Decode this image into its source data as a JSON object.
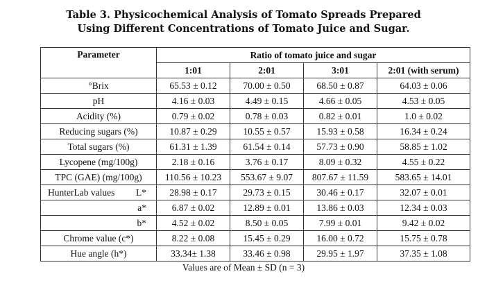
{
  "caption": {
    "line1": "Table 3. Physicochemical Analysis of Tomato Spreads Prepared",
    "line2": "Using Different Concentrations of Tomato Juice and Sugar."
  },
  "table": {
    "param_header": "Parameter",
    "group_header": "Ratio of tomato juice and sugar",
    "columns": [
      "1:01",
      "2:01",
      "3:01",
      "2:01 (with serum)"
    ],
    "rows": [
      {
        "label": "°Brix",
        "values": [
          "65.53 ± 0.12",
          "70.00 ± 0.50",
          "68.50 ± 0.87",
          "64.03 ± 0.06"
        ]
      },
      {
        "label": "pH",
        "values": [
          "4.16 ± 0.03",
          "4.49 ± 0.15",
          "4.66 ± 0.05",
          "4.53 ± 0.05"
        ]
      },
      {
        "label": "Acidity (%)",
        "values": [
          "0.79 ± 0.02",
          "0.78 ± 0.03",
          "0.82 ± 0.01",
          "1.0 ± 0.02"
        ]
      },
      {
        "label": "Reducing sugars (%)",
        "values": [
          "10.87 ± 0.29",
          "10.55 ± 0.57",
          "15.93 ± 0.58",
          "16.34 ± 0.24"
        ]
      },
      {
        "label": "Total sugars (%)",
        "values": [
          "61.31 ± 1.39",
          "61.54 ± 0.14",
          "57.73 ± 0.90",
          "58.85 ± 1.02"
        ]
      },
      {
        "label": "Lycopene (mg/100g)",
        "values": [
          "2.18 ± 0.16",
          "3.76 ± 0.17",
          "8.09 ± 0.32",
          "4.55 ± 0.22"
        ]
      },
      {
        "label": "TPC (GAE) (mg/100g)",
        "values": [
          "110.56 ± 10.23",
          "553.67 ± 9.07",
          "807.67 ± 11.59",
          "583.65 ± 14.01"
        ]
      }
    ],
    "hunterlab": {
      "label": "HunterLab values",
      "rows": [
        {
          "sub": "L*",
          "values": [
            "28.98 ± 0.17",
            "29.73 ± 0.15",
            "30.46 ± 0.17",
            "32.07 ± 0.01"
          ]
        },
        {
          "sub": "a*",
          "values": [
            "6.87 ± 0.02",
            "12.89 ± 0.01",
            "13.86 ± 0.03",
            "12.34 ± 0.03"
          ]
        },
        {
          "sub": "b*",
          "values": [
            "4.52 ± 0.02",
            "8.50 ± 0.05",
            "7.99 ± 0.01",
            "9.42 ± 0.02"
          ]
        }
      ]
    },
    "tail_rows": [
      {
        "label": "Chrome value (c*)",
        "values": [
          "8.22 ± 0.08",
          "15.45 ± 0.29",
          "16.00 ± 0.72",
          "15.75 ± 0.78"
        ]
      },
      {
        "label": "Hue angle (h*)",
        "values": [
          "33.34± 1.38",
          "33.46 ± 0.98",
          "29.95 ± 1.97",
          "37.35 ± 1.08"
        ]
      }
    ]
  },
  "footnote": "Values are of Mean ± SD (n = 3)"
}
